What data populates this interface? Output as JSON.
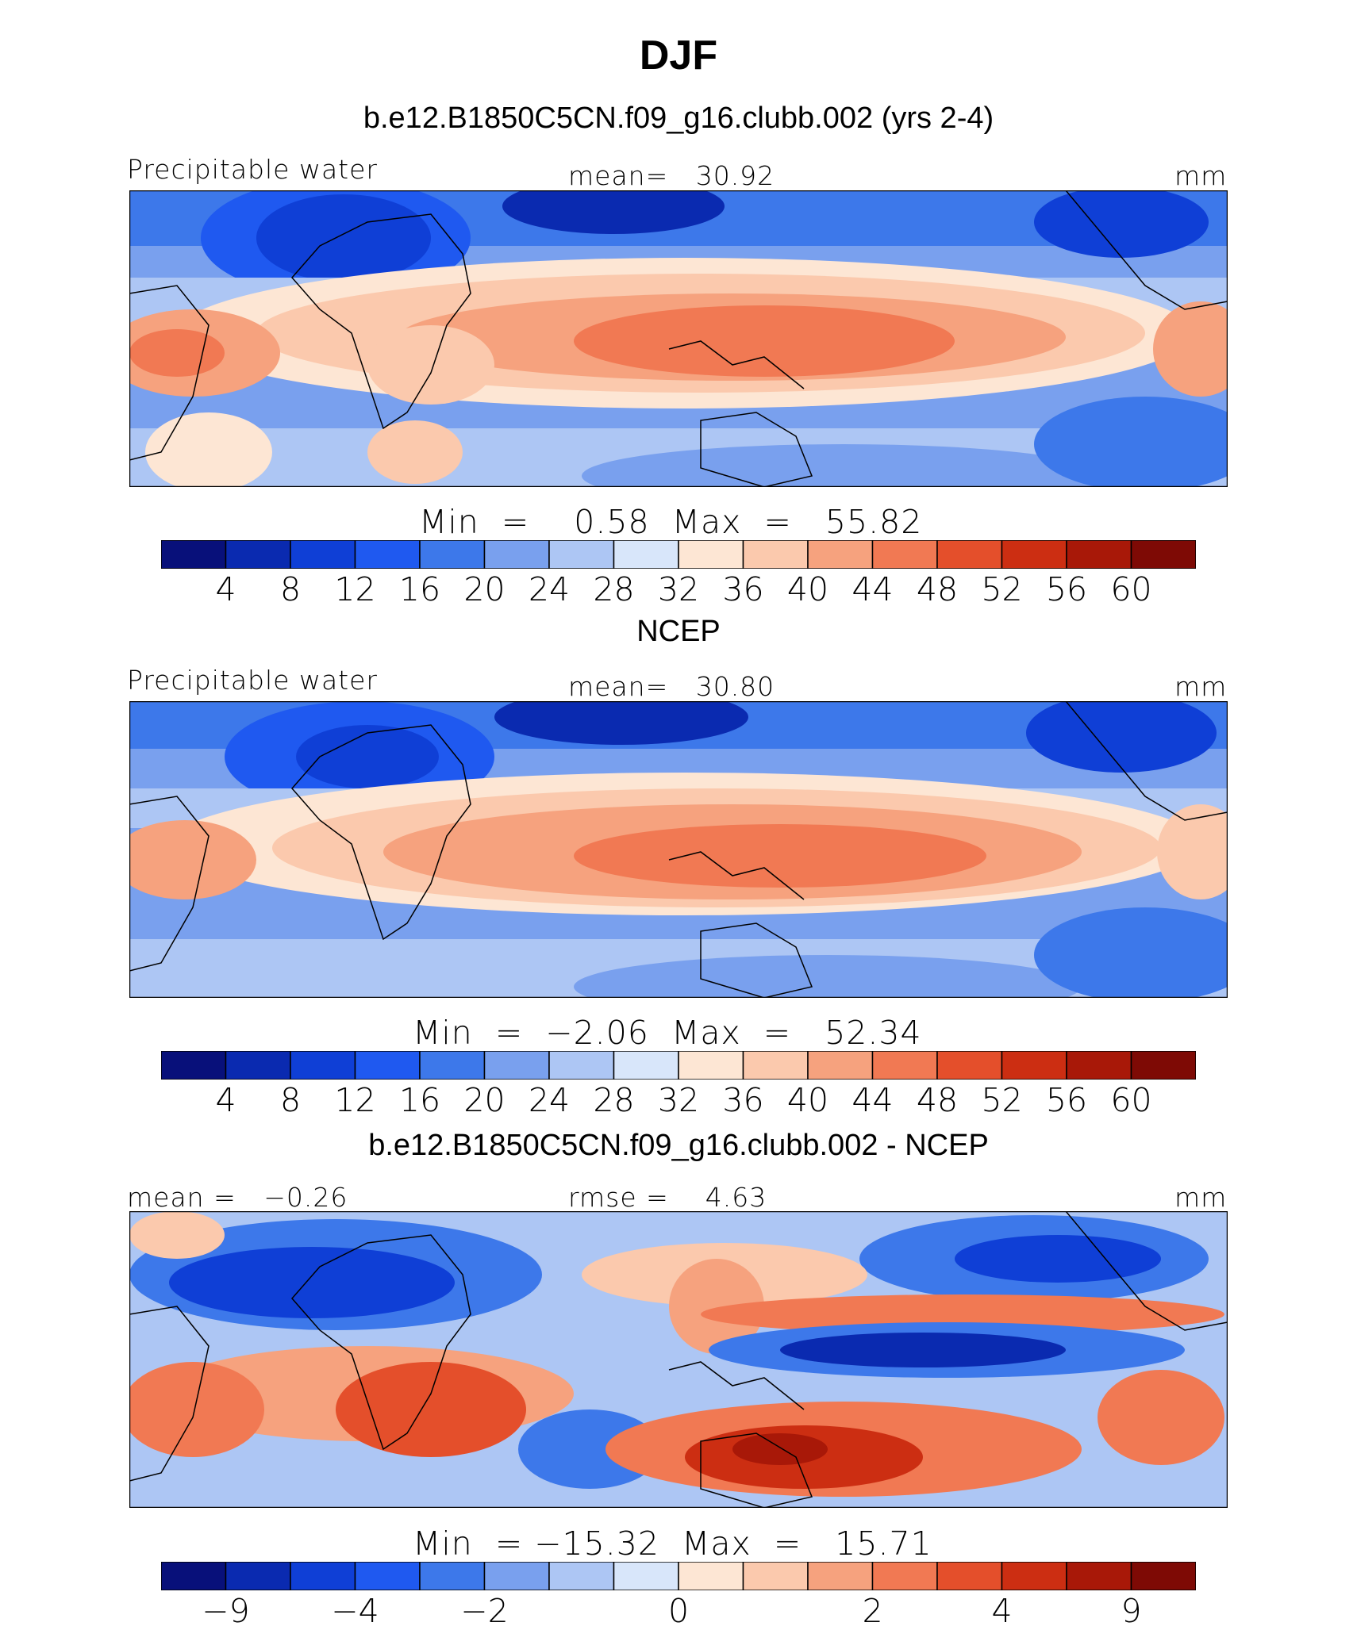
{
  "title": "DJF",
  "palette": [
    "#08107a",
    "#0a2ab0",
    "#0f3fd6",
    "#1f59f0",
    "#3d78ea",
    "#79a0ee",
    "#adc6f4",
    "#d8e6fa",
    "#fde6d4",
    "#fbc9ad",
    "#f6a27e",
    "#f17953",
    "#e44f2b",
    "#cc2e12",
    "#a81808",
    "#7e0a05"
  ],
  "panels": [
    {
      "heading": "b.e12.B1850C5CN.f09_g16.clubb.002 (yrs 2-4)",
      "left_label": "Precipitable water",
      "center_label": "mean=   30.92",
      "units": "mm",
      "minmax": "Min  =    0.58  Max  =   55.82",
      "ticks": [
        "4",
        "8",
        "12",
        "16",
        "20",
        "24",
        "28",
        "32",
        "36",
        "40",
        "44",
        "48",
        "52",
        "56",
        "60"
      ]
    },
    {
      "heading": "NCEP",
      "left_label": "Precipitable water",
      "center_label": "mean=   30.80",
      "units": "mm",
      "minmax": "Min  =  −2.06  Max  =   52.34",
      "ticks": [
        "4",
        "8",
        "12",
        "16",
        "20",
        "24",
        "28",
        "32",
        "36",
        "40",
        "44",
        "48",
        "52",
        "56",
        "60"
      ]
    },
    {
      "heading": "b.e12.B1850C5CN.f09_g16.clubb.002 - NCEP",
      "left_label": "mean =   −0.26",
      "center_label": "rmse =    4.63",
      "units": "mm",
      "minmax": "Min  = −15.32  Max  =   15.71",
      "ticks": [
        "−9",
        "−4",
        "−2",
        "0",
        "2",
        "4",
        "9"
      ]
    }
  ]
}
